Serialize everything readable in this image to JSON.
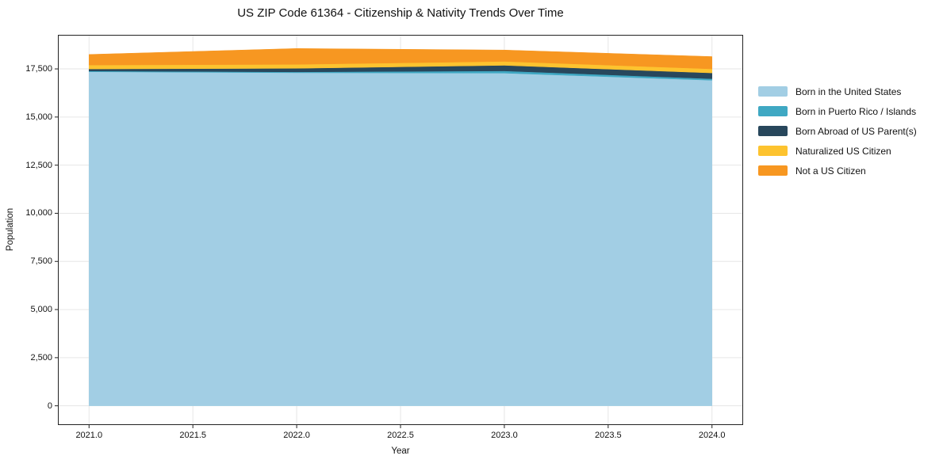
{
  "title": "US ZIP Code 61364 - Citizenship & Nativity Trends Over Time",
  "chart_data": {
    "type": "area",
    "stacked": true,
    "title": "US ZIP Code 61364 - Citizenship & Nativity Trends Over Time",
    "xlabel": "Year",
    "ylabel": "Population",
    "x": [
      2021,
      2022,
      2023,
      2024
    ],
    "series": [
      {
        "name": "Born in the United States",
        "color": "#a2cee4",
        "values": [
          17350,
          17300,
          17280,
          16910
        ]
      },
      {
        "name": "Born in Puerto Rico / Islands",
        "color": "#3fa8c3",
        "values": [
          40,
          45,
          115,
          80
        ]
      },
      {
        "name": "Born Abroad of US Parent(s)",
        "color": "#28475c",
        "values": [
          105,
          185,
          290,
          300
        ]
      },
      {
        "name": "Naturalized US Citizen",
        "color": "#fdc32f",
        "values": [
          205,
          205,
          205,
          210
        ]
      },
      {
        "name": "Not a US Citizen",
        "color": "#f79721",
        "values": [
          550,
          825,
          590,
          640
        ]
      }
    ],
    "totals": [
      18250,
      18560,
      18480,
      18140
    ],
    "x_ticks": [
      2021.0,
      2021.5,
      2022.0,
      2022.5,
      2023.0,
      2023.5,
      2024.0
    ],
    "x_tick_labels": [
      "2021.0",
      "2021.5",
      "2022.0",
      "2022.5",
      "2023.0",
      "2023.5",
      "2024.0"
    ],
    "y_ticks": [
      0,
      2500,
      5000,
      7500,
      10000,
      12500,
      15000,
      17500
    ],
    "y_tick_labels": [
      "0",
      "2,500",
      "5,000",
      "7,500",
      "10,000",
      "12,500",
      "15,000",
      "17,500"
    ],
    "xlim": [
      2020.85,
      2024.15
    ],
    "ylim": [
      -1000,
      19270
    ],
    "grid": true,
    "legend_position": "outside-right",
    "colors": {
      "background": "#ffffff",
      "grid": "#e6e6e6",
      "spine": "#222222",
      "text": "#111111"
    }
  }
}
